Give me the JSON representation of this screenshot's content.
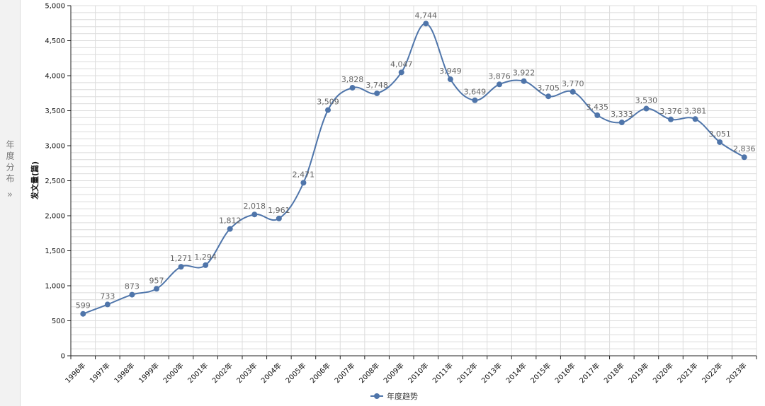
{
  "side_tab": {
    "label": "年度分布",
    "expand": "»"
  },
  "chart_data": {
    "type": "line",
    "ylabel": "发文量(篇)",
    "ylim": [
      0,
      5000
    ],
    "y_ticks": [
      "0",
      "500",
      "1,000",
      "1,500",
      "2,000",
      "2,500",
      "3,000",
      "3,500",
      "4,000",
      "4,500",
      "5,000"
    ],
    "y_tick_values": [
      0,
      500,
      1000,
      1500,
      2000,
      2500,
      3000,
      3500,
      4000,
      4500,
      5000
    ],
    "grid": true,
    "legend_position": "bottom-center",
    "categories": [
      "1996年",
      "1997年",
      "1998年",
      "1999年",
      "2000年",
      "2001年",
      "2002年",
      "2003年",
      "2004年",
      "2005年",
      "2006年",
      "2007年",
      "2008年",
      "2009年",
      "2010年",
      "2011年",
      "2012年",
      "2013年",
      "2014年",
      "2015年",
      "2016年",
      "2017年",
      "2018年",
      "2019年",
      "2020年",
      "2021年",
      "2022年",
      "2023年"
    ],
    "series": [
      {
        "name": "年度趋势",
        "color": "#4f75aa",
        "values": [
          599,
          733,
          873,
          957,
          1271,
          1294,
          1812,
          2018,
          1961,
          2471,
          3509,
          3828,
          3748,
          4047,
          4744,
          3949,
          3649,
          3876,
          3922,
          3705,
          3770,
          3435,
          3333,
          3530,
          3376,
          3381,
          3051,
          2836
        ],
        "value_labels": [
          "599",
          "733",
          "873",
          "957",
          "1,271",
          "1,294",
          "1,812",
          "2,018",
          "1,961",
          "2,471",
          "3,509",
          "3,828",
          "3,748",
          "4,047",
          "4,744",
          "3,949",
          "3,649",
          "3,876",
          "3,922",
          "3,705",
          "3,770",
          "3,435",
          "3,333",
          "3,530",
          "3,376",
          "3,381",
          "3,051",
          "2,836"
        ]
      }
    ]
  }
}
